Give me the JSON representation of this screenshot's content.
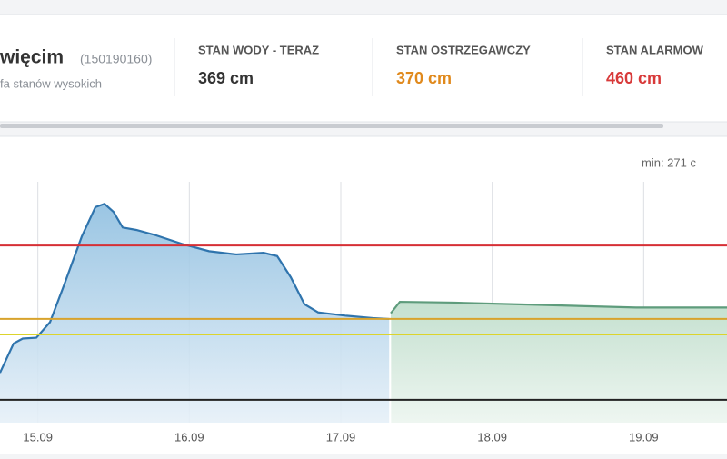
{
  "header": {
    "station": "więcim",
    "code": "(150190160)",
    "subtitle": "fa stanów wysokich",
    "stats": [
      {
        "label": "STAN WODY - TERAZ",
        "value": "369 cm",
        "color": "#333333"
      },
      {
        "label": "STAN OSTRZEGAWCZY",
        "value": "370 cm",
        "color": "#e0891c"
      },
      {
        "label": "STAN ALARMOW",
        "value": "460 cm",
        "color": "#d83a3a"
      }
    ]
  },
  "chart_data": {
    "type": "area",
    "min_label": "min: 271 c",
    "xlim": [
      14.75,
      19.55
    ],
    "ylim": [
      243,
      538
    ],
    "xticks": [
      {
        "value": 15,
        "label": "15.09"
      },
      {
        "value": 16,
        "label": "16.09"
      },
      {
        "value": 17,
        "label": "17.09"
      },
      {
        "value": 18,
        "label": "18.09"
      },
      {
        "value": 19,
        "label": "19.09"
      }
    ],
    "thresholds": [
      {
        "value": 460,
        "color": "#d62f35"
      },
      {
        "value": 370,
        "color": "#d8a32c"
      },
      {
        "value": 351,
        "color": "#dcd42c"
      },
      {
        "value": 271,
        "color": "#222222"
      }
    ],
    "series": [
      {
        "color": "#2f74ad",
        "fill": "#a9cde6",
        "x": [
          14.75,
          14.84,
          14.9,
          14.99,
          15.08,
          15.17,
          15.29,
          15.38,
          15.44,
          15.5,
          15.56,
          15.65,
          15.77,
          15.95,
          16.13,
          16.31,
          16.49,
          16.58,
          16.67,
          16.76,
          16.85,
          17.03,
          17.21,
          17.32
        ],
        "values": [
          304,
          340,
          346,
          347,
          366,
          410,
          471,
          507,
          511,
          501,
          482,
          479,
          473,
          462,
          453,
          449,
          451,
          447,
          421,
          388,
          378,
          374,
          371,
          370
        ]
      },
      {
        "color": "#5e9c7c",
        "fill": "#cfe6d8",
        "x": [
          17.33,
          17.39,
          17.75,
          18.35,
          18.95,
          19.55
        ],
        "values": [
          377,
          391,
          390,
          387,
          384,
          384
        ]
      }
    ]
  }
}
